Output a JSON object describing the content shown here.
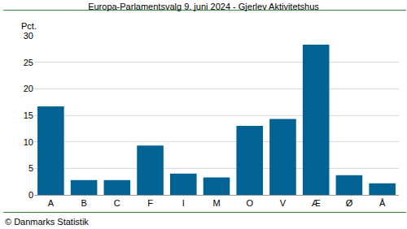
{
  "chart_data": {
    "type": "bar",
    "title": "Europa-Parlamentsvalg 9. juni 2024 - Gjerlev Aktivitetshus",
    "y_label": "Pct.",
    "source": "© Danmarks Statistik",
    "categories": [
      "A",
      "B",
      "C",
      "F",
      "I",
      "M",
      "O",
      "V",
      "Æ",
      "Ø",
      "Å"
    ],
    "values": [
      16.7,
      2.8,
      2.8,
      9.3,
      4.0,
      3.3,
      13.0,
      14.3,
      28.3,
      3.7,
      2.2
    ],
    "color": "#006394",
    "ylim": [
      0,
      30
    ],
    "yticks": [
      0,
      5,
      10,
      15,
      20,
      25,
      30
    ],
    "grid": true
  }
}
